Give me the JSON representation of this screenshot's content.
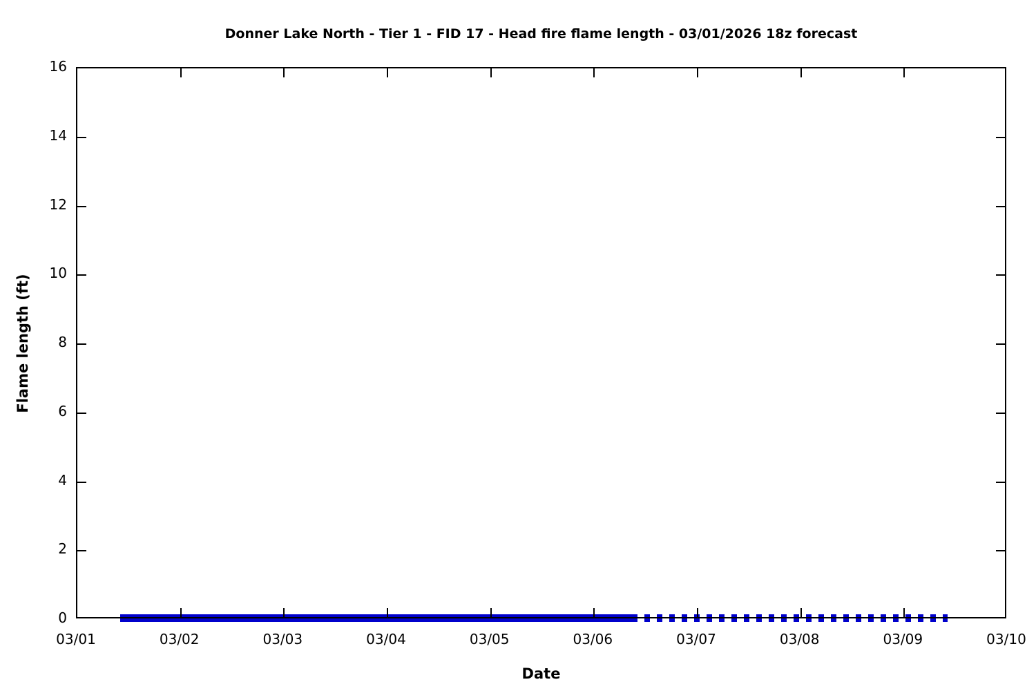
{
  "chart_data": {
    "type": "line",
    "title": "Donner Lake North - Tier 1 - FID 17 - Head fire flame length - 03/01/2026 18z forecast",
    "xlabel": "Date",
    "ylabel": "Flame length (ft)",
    "x_tick_labels": [
      "03/01",
      "03/02",
      "03/03",
      "03/04",
      "03/05",
      "03/06",
      "03/07",
      "03/08",
      "03/09",
      "03/10"
    ],
    "x_range_days": [
      0,
      9
    ],
    "ylim": [
      0,
      16
    ],
    "y_ticks": [
      0,
      2,
      4,
      6,
      8,
      10,
      12,
      14,
      16
    ],
    "grid": false,
    "legend": false,
    "line_color": "#0000CC",
    "axis_color": "#000000",
    "background_color": "#FFFFFF",
    "series": [
      {
        "name": "Head fire flame length (forecast, solid segment)",
        "style": "solid",
        "start_day": 0.4167,
        "end_day": 5.4167,
        "y_value": 0
      },
      {
        "name": "Head fire flame length (extended forecast, dashed segment)",
        "style": "dashed",
        "start_day": 5.4167,
        "end_day": 8.4167,
        "y_value": 0
      }
    ]
  }
}
